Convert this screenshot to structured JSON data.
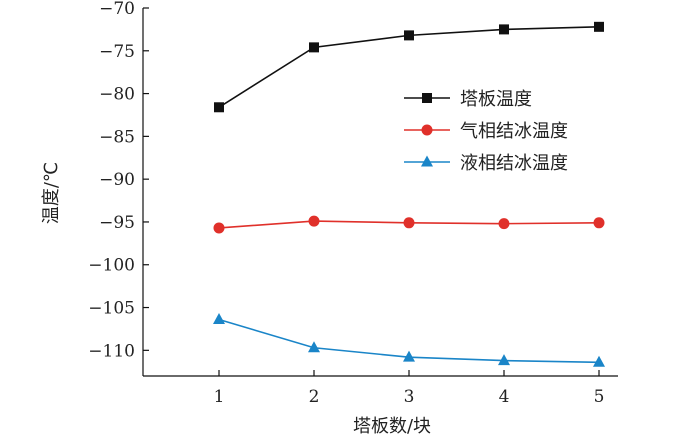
{
  "chart_data": {
    "type": "line",
    "x": [
      1,
      2,
      3,
      4,
      5
    ],
    "xlabel": "塔板数/块",
    "ylabel": "温度/℃",
    "xlim": [
      0.2,
      5.2
    ],
    "ylim": [
      -113,
      -70
    ],
    "xticks": [
      1,
      2,
      3,
      4,
      5
    ],
    "xtick_labels": [
      "1",
      "2",
      "3",
      "4",
      "5"
    ],
    "yticks": [
      -70,
      -75,
      -80,
      -85,
      -90,
      -95,
      -100,
      -105,
      -110
    ],
    "ytick_labels": [
      "−70",
      "−75",
      "−80",
      "−85",
      "−90",
      "−95",
      "−100",
      "−105",
      "−110"
    ],
    "grid": false,
    "legend_position": "upper-right",
    "series": [
      {
        "name": "塔板温度",
        "values": [
          -81.6,
          -74.6,
          -73.2,
          -72.5,
          -72.2
        ],
        "color": "#111111",
        "marker": "square"
      },
      {
        "name": "气相结冰温度",
        "values": [
          -95.7,
          -94.9,
          -95.1,
          -95.2,
          -95.1
        ],
        "color": "#e0302a",
        "marker": "circle"
      },
      {
        "name": "液相结冰温度",
        "values": [
          -106.4,
          -109.7,
          -110.8,
          -111.2,
          -111.4
        ],
        "color": "#1a85c8",
        "marker": "triangle"
      }
    ]
  }
}
